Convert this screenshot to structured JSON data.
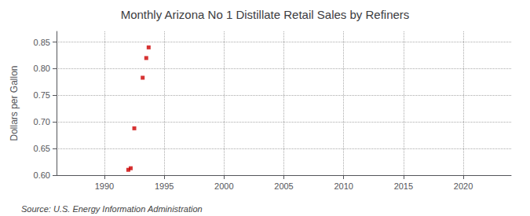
{
  "chart_data": {
    "type": "scatter",
    "title": "Monthly Arizona No 1 Distillate Retail Sales by Refiners",
    "ylabel": "Dollars per Gallon",
    "annotations": [
      "Source: U.S. Energy Information Administration"
    ],
    "x": [
      1992.0,
      1992.2,
      1992.5,
      1993.2,
      1993.5,
      1993.7
    ],
    "values": [
      0.61,
      0.613,
      0.688,
      0.783,
      0.82,
      0.84
    ],
    "color": "#cc0000",
    "marker": "square",
    "xlim": [
      1986,
      2024
    ],
    "ylim": [
      0.6,
      0.87
    ],
    "xticks": [
      1990,
      1995,
      2000,
      2005,
      2010,
      2015,
      2020
    ],
    "yticks": [
      {
        "value": 0.6,
        "label": "0.60"
      },
      0.65,
      {
        "value": 0.7,
        "label": "0.70"
      },
      0.75,
      {
        "value": 0.8,
        "label": "0.80"
      },
      0.85
    ],
    "grid": true
  }
}
